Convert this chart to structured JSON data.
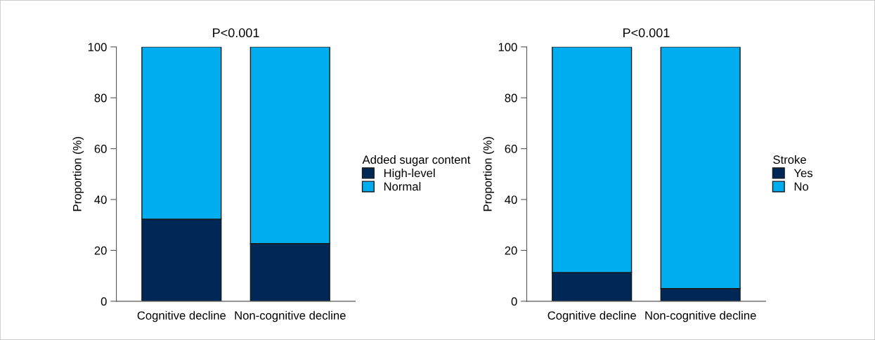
{
  "chart_data": [
    {
      "type": "bar",
      "title": "P<0.001",
      "ylabel": "Proportion (%)",
      "categories": [
        "Cognitive decline",
        "Non-cognitive decline"
      ],
      "stacked": true,
      "legend": "right",
      "legend_title": "Added sugar content",
      "ylim": [
        0,
        100
      ],
      "yticks": [
        0,
        20,
        40,
        60,
        80,
        100
      ],
      "grid": false,
      "series": [
        {
          "name": "High-level",
          "color": "#002856",
          "values": [
            32.3,
            22.7
          ]
        },
        {
          "name": "Normal",
          "color": "#00aeef",
          "values": [
            67.7,
            77.3
          ]
        }
      ]
    },
    {
      "type": "bar",
      "title": "P<0.001",
      "ylabel": "Proportion (%)",
      "categories": [
        "Cognitive decline",
        "Non-cognitive decline"
      ],
      "stacked": true,
      "legend": "right",
      "legend_title": "Stroke",
      "ylim": [
        0,
        100
      ],
      "yticks": [
        0,
        20,
        40,
        60,
        80,
        100
      ],
      "grid": false,
      "series": [
        {
          "name": "Yes",
          "color": "#002856",
          "values": [
            11.3,
            5.0
          ]
        },
        {
          "name": "No",
          "color": "#00aeef",
          "values": [
            88.7,
            95.0
          ]
        }
      ]
    }
  ]
}
